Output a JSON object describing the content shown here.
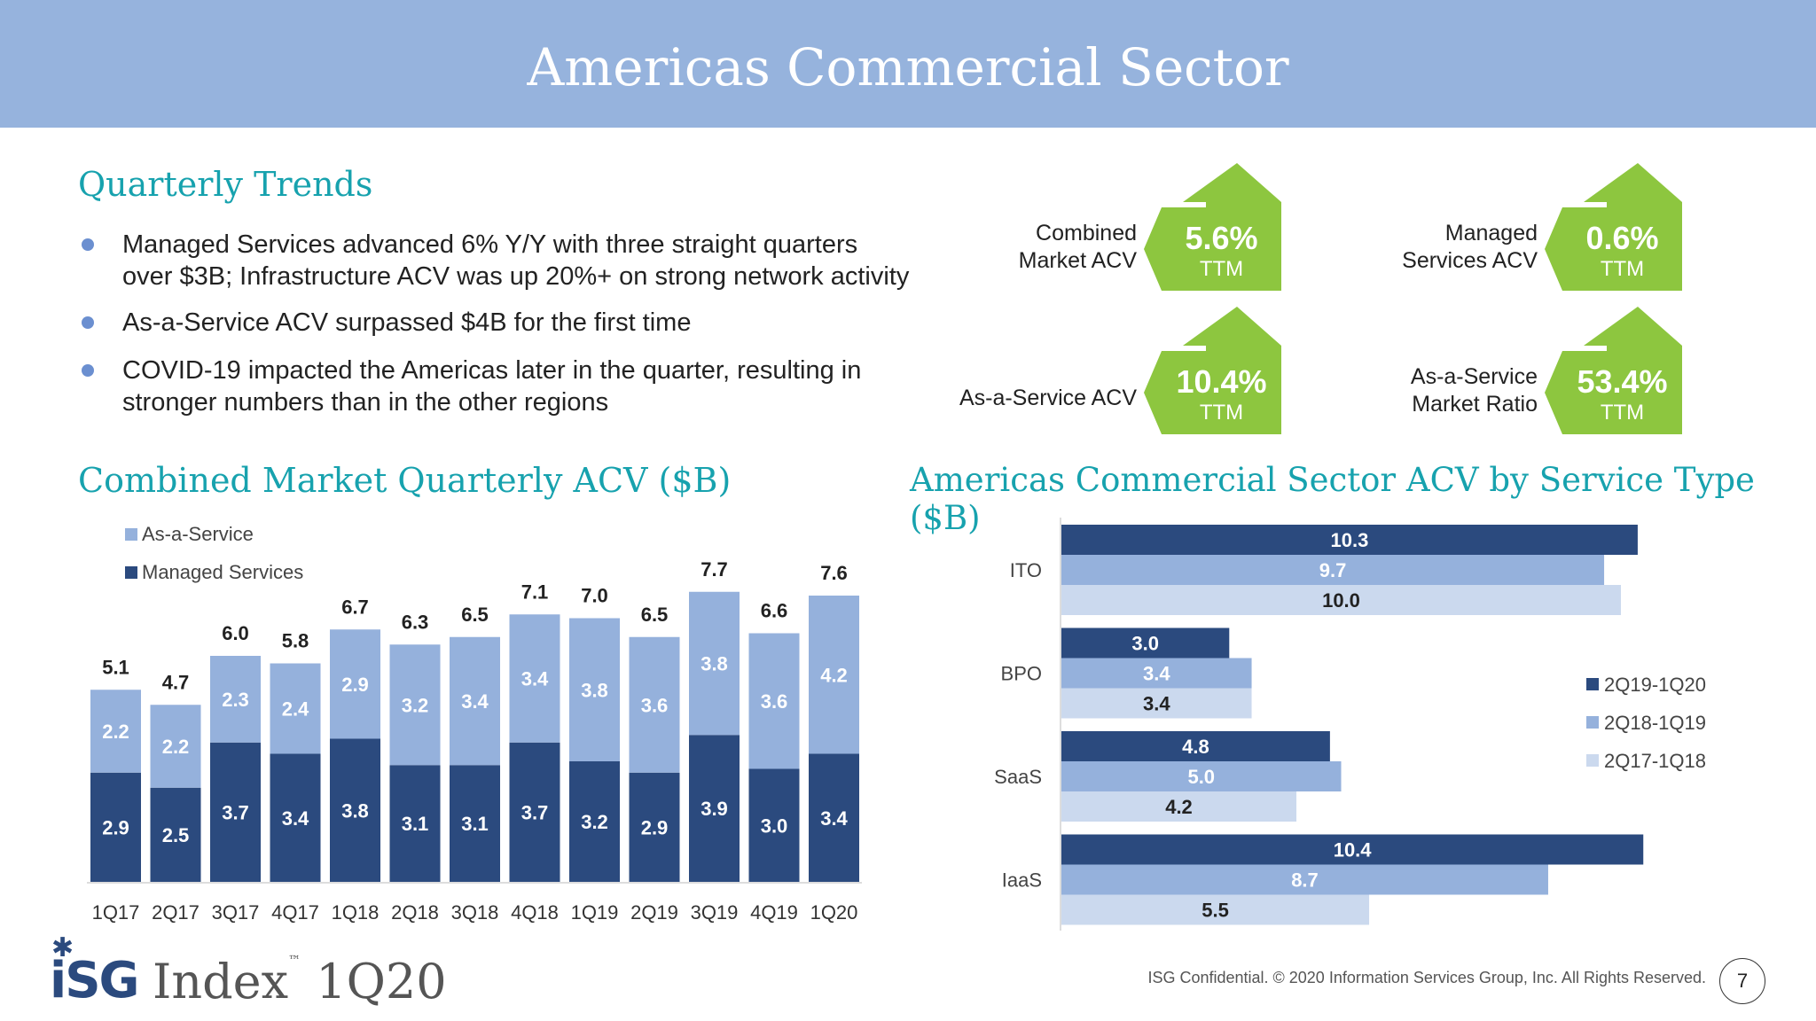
{
  "header": {
    "title": "Americas Commercial Sector"
  },
  "trends": {
    "title": "Quarterly Trends",
    "bullets": [
      [
        "Managed Services advanced 6% Y/Y with three straight quarters",
        "over $3B; Infrastructure ACV was up 20%+ on strong network activity"
      ],
      [
        "As-a-Service ACV surpassed $4B for the first time"
      ],
      [
        "COVID-19 impacted the Americas later in the quarter, resulting in",
        "stronger numbers than in the other regions"
      ]
    ]
  },
  "kpis": [
    {
      "label": [
        "Combined",
        "Market ACV"
      ],
      "value": "5.6%",
      "sub": "TTM",
      "icon": "up-arrow-icon"
    },
    {
      "label": [
        "Managed",
        "Services ACV"
      ],
      "value": "0.6%",
      "sub": "TTM",
      "icon": "up-arrow-icon"
    },
    {
      "label": [
        "As-a-Service ACV"
      ],
      "value": "10.4%",
      "sub": "TTM",
      "icon": "up-arrow-icon"
    },
    {
      "label": [
        "As-a-Service",
        "Market Ratio"
      ],
      "value": "53.4%",
      "sub": "TTM",
      "icon": "up-arrow-icon"
    }
  ],
  "colors": {
    "dark": "#2b4a7e",
    "mid": "#95b1dc",
    "light": "#cbd9ee",
    "green": "#8dc63f",
    "teal": "#17a2ae",
    "header": "#96b3dd"
  },
  "chart_data": [
    {
      "type": "bar",
      "stacked": true,
      "title": "Combined Market Quarterly ACV ($B)",
      "categories": [
        "1Q17",
        "2Q17",
        "3Q17",
        "4Q17",
        "1Q18",
        "2Q18",
        "3Q18",
        "4Q18",
        "1Q19",
        "2Q19",
        "3Q19",
        "4Q19",
        "1Q20"
      ],
      "series": [
        {
          "name": "Managed Services",
          "values": [
            2.9,
            2.5,
            3.7,
            3.4,
            3.8,
            3.1,
            3.1,
            3.7,
            3.2,
            2.9,
            3.9,
            3.0,
            3.4
          ]
        },
        {
          "name": "As-a-Service",
          "values": [
            2.2,
            2.2,
            2.3,
            2.4,
            2.9,
            3.2,
            3.4,
            3.4,
            3.8,
            3.6,
            3.8,
            3.6,
            4.2
          ]
        }
      ],
      "totals": [
        "5.1",
        "4.7",
        "6.0",
        "5.8",
        "6.7",
        "6.3",
        "6.5",
        "7.1",
        "7.0",
        "6.5",
        "7.7",
        "6.6",
        "7.6"
      ],
      "legend": "top-left",
      "grid": false
    },
    {
      "type": "bar",
      "orientation": "horizontal",
      "title": "Americas Commercial Sector ACV by Service Type ($B)",
      "categories": [
        "ITO",
        "BPO",
        "SaaS",
        "IaaS"
      ],
      "series": [
        {
          "name": "2Q19-1Q20",
          "values": [
            10.3,
            3.0,
            4.8,
            10.4
          ]
        },
        {
          "name": "2Q18-1Q19",
          "values": [
            9.7,
            3.4,
            5.0,
            8.7
          ]
        },
        {
          "name": "2Q17-1Q18",
          "values": [
            10.0,
            3.4,
            4.2,
            5.5
          ]
        }
      ],
      "legend": "right",
      "grid": false
    }
  ],
  "footer": {
    "logo": "ISG Index™ 1Q20",
    "copyright": "ISG Confidential. © 2020 Information Services Group, Inc.  All Rights Reserved.",
    "page": "7"
  }
}
